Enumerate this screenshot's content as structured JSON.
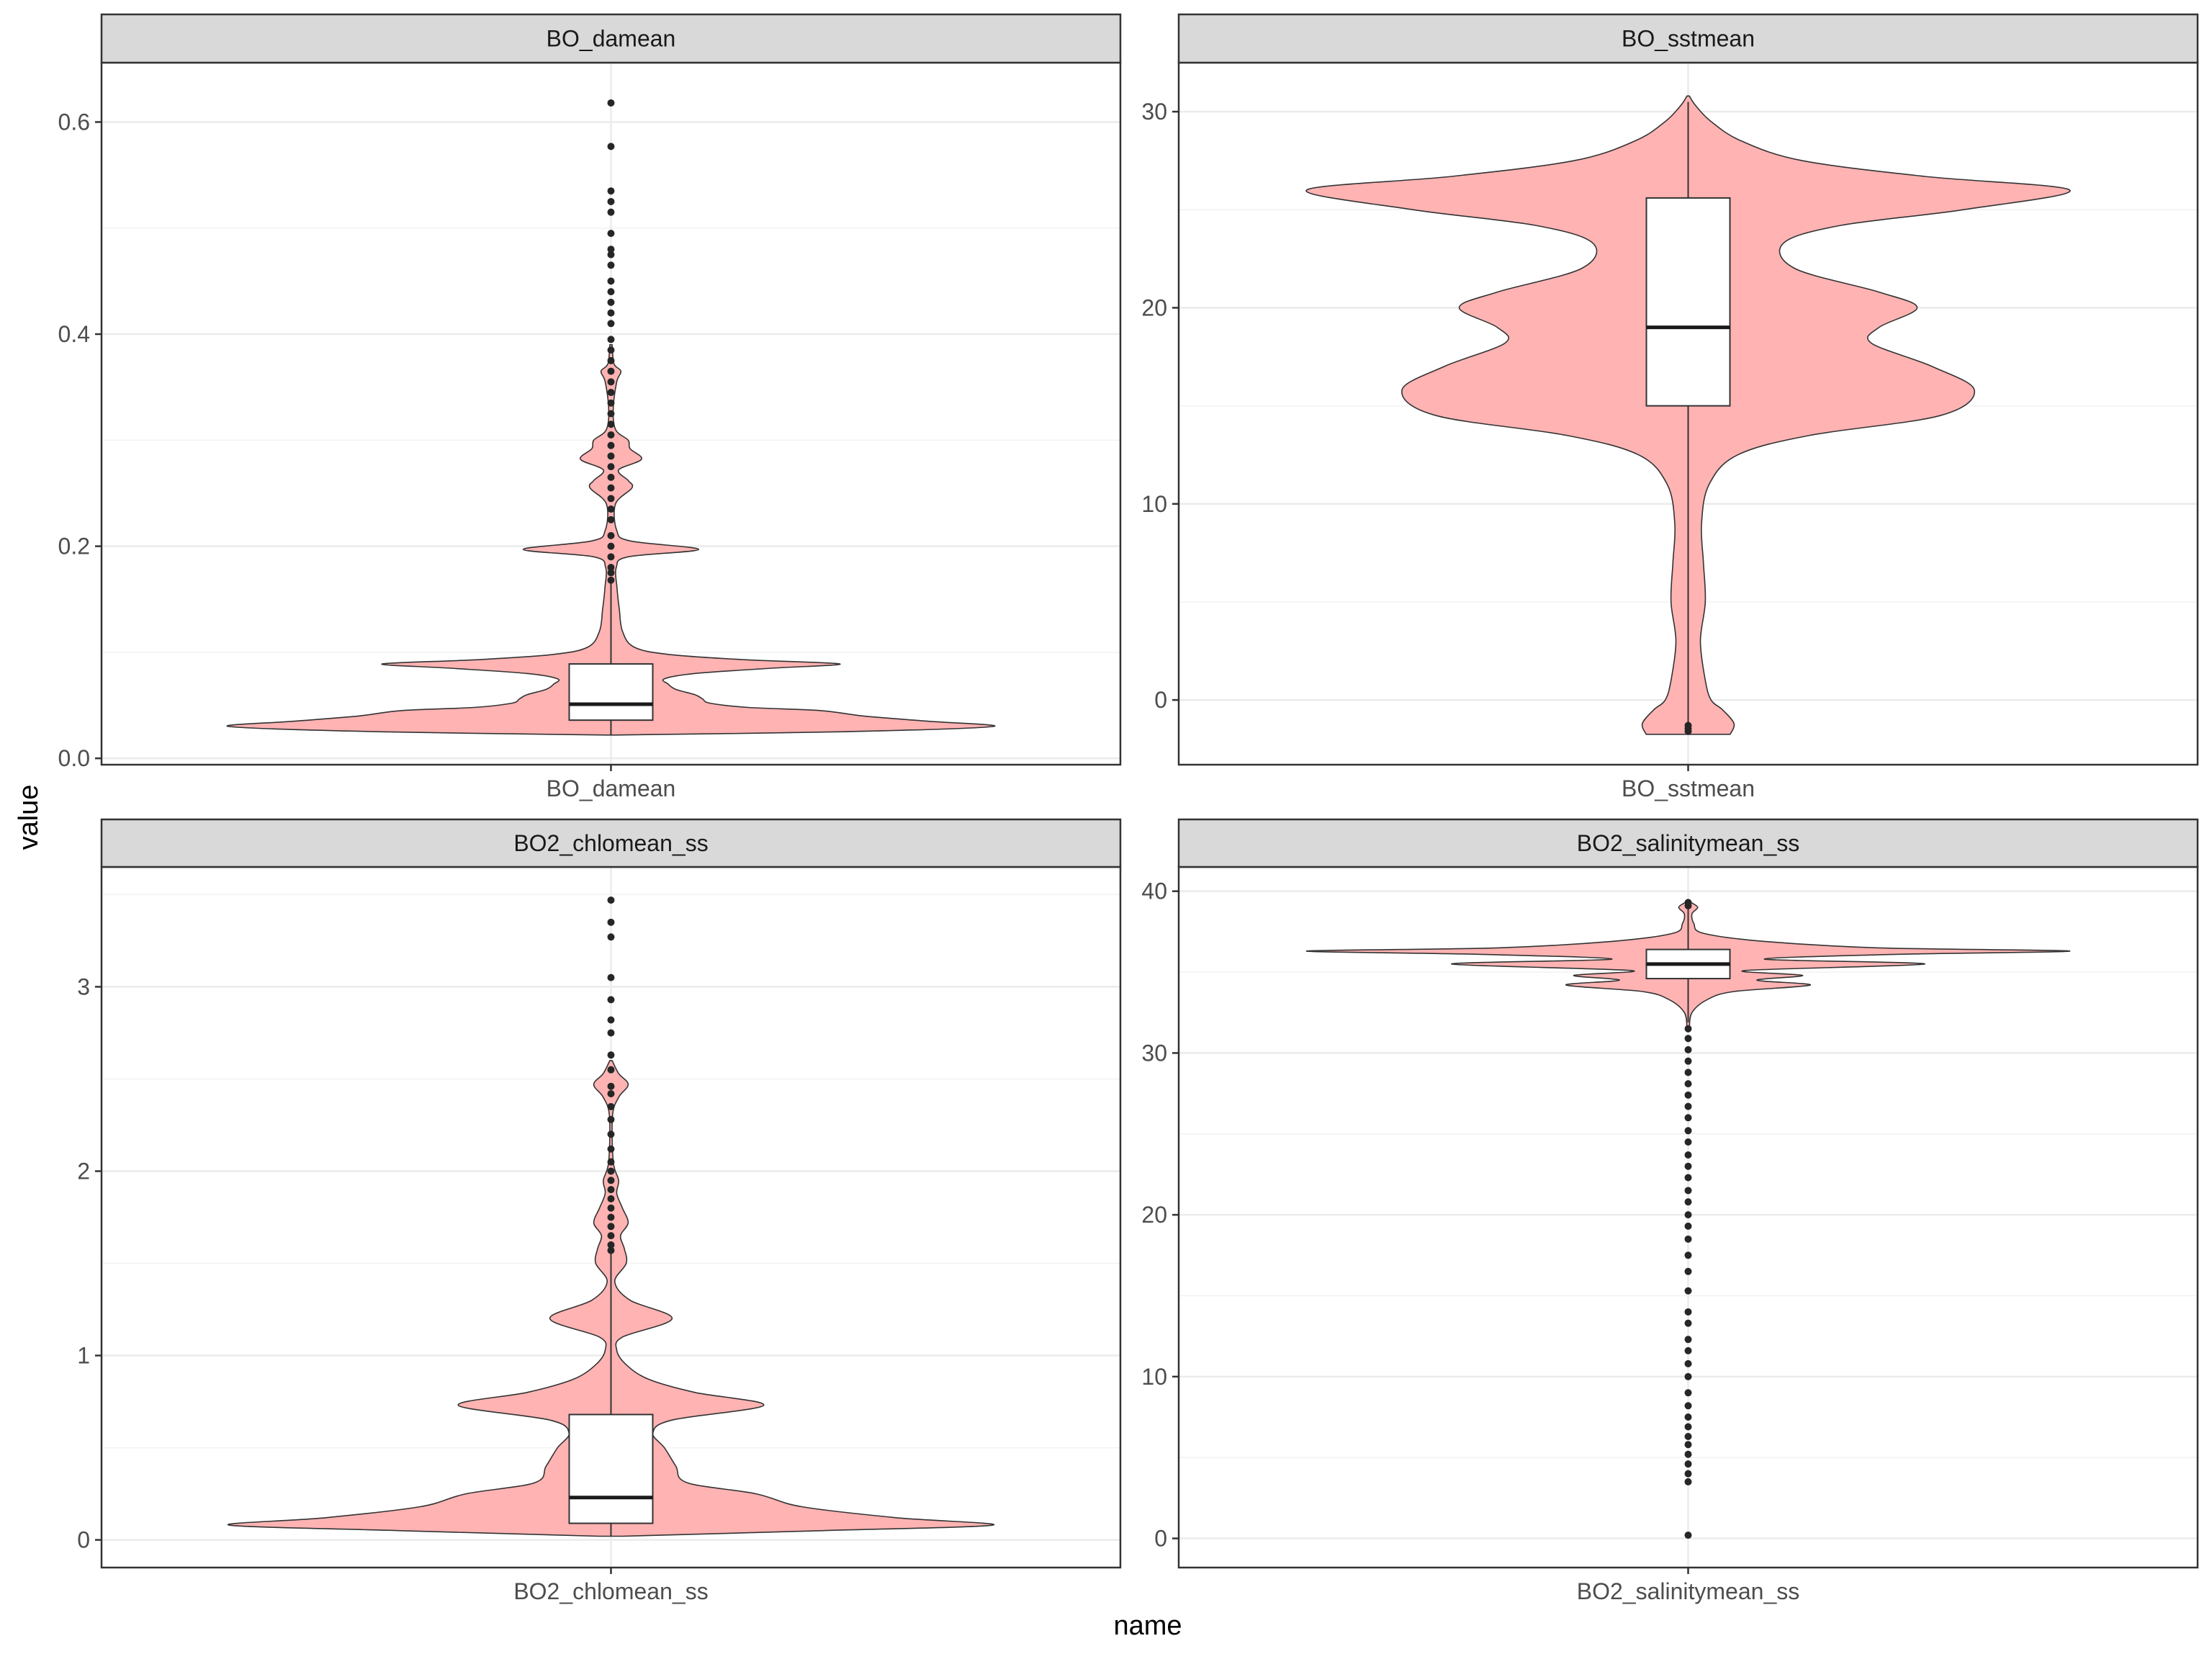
{
  "figure": {
    "xlabel": "name",
    "ylabel": "value"
  },
  "colors": {
    "violin_fill": "#ffb3b3",
    "violin_stroke": "#333333",
    "box_fill": "#ffffff",
    "median": "#1a1a1a",
    "outlier": "#262626",
    "strip_fill": "#d9d9d9",
    "panel_border": "#333333",
    "grid_major": "#ebebeb",
    "grid_minor": "#f2f2f2"
  },
  "chart_data": [
    {
      "type": "violin",
      "facet": "BO_damean",
      "category": "BO_damean",
      "ylim": [
        -0.006,
        0.656
      ],
      "yticks": [
        0.0,
        0.2,
        0.4,
        0.6
      ],
      "yticklabels": [
        "0.0",
        "0.2",
        "0.4",
        "0.6"
      ],
      "grid": true,
      "box": {
        "q1": 0.036,
        "median": 0.051,
        "q3": 0.089,
        "whisker_low": 0.022,
        "whisker_high": 0.168
      },
      "density_profile": [
        [
          0.022,
          0.01
        ],
        [
          0.025,
          0.6
        ],
        [
          0.03,
          1.0
        ],
        [
          0.035,
          0.83
        ],
        [
          0.04,
          0.66
        ],
        [
          0.045,
          0.55
        ],
        [
          0.048,
          0.36
        ],
        [
          0.052,
          0.26
        ],
        [
          0.056,
          0.24
        ],
        [
          0.06,
          0.22
        ],
        [
          0.065,
          0.17
        ],
        [
          0.07,
          0.15
        ],
        [
          0.075,
          0.14
        ],
        [
          0.08,
          0.22
        ],
        [
          0.085,
          0.42
        ],
        [
          0.089,
          0.6
        ],
        [
          0.093,
          0.35
        ],
        [
          0.098,
          0.15
        ],
        [
          0.105,
          0.06
        ],
        [
          0.12,
          0.03
        ],
        [
          0.14,
          0.022
        ],
        [
          0.16,
          0.016
        ],
        [
          0.18,
          0.014
        ],
        [
          0.19,
          0.045
        ],
        [
          0.197,
          0.23
        ],
        [
          0.205,
          0.05
        ],
        [
          0.215,
          0.015
        ],
        [
          0.24,
          0.012
        ],
        [
          0.255,
          0.055
        ],
        [
          0.262,
          0.045
        ],
        [
          0.272,
          0.02
        ],
        [
          0.282,
          0.08
        ],
        [
          0.292,
          0.05
        ],
        [
          0.3,
          0.045
        ],
        [
          0.31,
          0.012
        ],
        [
          0.33,
          0.006
        ],
        [
          0.355,
          0.015
        ],
        [
          0.365,
          0.026
        ],
        [
          0.372,
          0.008
        ],
        [
          0.39,
          0.003
        ]
      ],
      "outliers": [
        0.168,
        0.175,
        0.18,
        0.19,
        0.2,
        0.21,
        0.225,
        0.235,
        0.245,
        0.255,
        0.265,
        0.275,
        0.285,
        0.295,
        0.305,
        0.315,
        0.325,
        0.335,
        0.345,
        0.355,
        0.365,
        0.375,
        0.385,
        0.395,
        0.41,
        0.42,
        0.43,
        0.44,
        0.45,
        0.465,
        0.475,
        0.48,
        0.495,
        0.515,
        0.525,
        0.535,
        0.577,
        0.618
      ]
    },
    {
      "type": "violin",
      "facet": "BO_sstmean",
      "category": "BO_sstmean",
      "ylim": [
        -3.3,
        32.5
      ],
      "yticks": [
        0,
        10,
        20,
        30
      ],
      "yticklabels": [
        "0",
        "10",
        "20",
        "30"
      ],
      "grid": true,
      "box": {
        "q1": 15.0,
        "median": 19.0,
        "q3": 25.6,
        "whisker_low": -1.6,
        "whisker_high": 30.5
      },
      "density_profile": [
        [
          -1.75,
          0.11
        ],
        [
          -1.2,
          0.12
        ],
        [
          -0.5,
          0.09
        ],
        [
          0.0,
          0.06
        ],
        [
          1.0,
          0.045
        ],
        [
          3.0,
          0.032
        ],
        [
          5.0,
          0.045
        ],
        [
          7.0,
          0.04
        ],
        [
          9.0,
          0.035
        ],
        [
          11.0,
          0.055
        ],
        [
          12.5,
          0.13
        ],
        [
          13.5,
          0.32
        ],
        [
          14.5,
          0.66
        ],
        [
          15.8,
          0.75
        ],
        [
          17.0,
          0.64
        ],
        [
          18.2,
          0.48
        ],
        [
          19.0,
          0.5
        ],
        [
          20.0,
          0.6
        ],
        [
          20.8,
          0.5
        ],
        [
          22.0,
          0.28
        ],
        [
          23.3,
          0.25
        ],
        [
          24.2,
          0.4
        ],
        [
          25.0,
          0.72
        ],
        [
          26.0,
          1.0
        ],
        [
          26.7,
          0.62
        ],
        [
          27.5,
          0.3
        ],
        [
          28.5,
          0.14
        ],
        [
          29.5,
          0.06
        ],
        [
          30.3,
          0.02
        ],
        [
          30.8,
          0.003
        ]
      ],
      "outliers": [
        -1.6,
        -1.45,
        -1.3
      ]
    },
    {
      "type": "violin",
      "facet": "BO2_chlomean_ss",
      "category": "BO2_chlomean_ss",
      "ylim": [
        -0.15,
        3.65
      ],
      "yticks": [
        0,
        1,
        2,
        3
      ],
      "yticklabels": [
        "0",
        "1",
        "2",
        "3"
      ],
      "grid": true,
      "box": {
        "q1": 0.09,
        "median": 0.23,
        "q3": 0.68,
        "whisker_low": 0.02,
        "whisker_high": 1.57
      },
      "density_profile": [
        [
          0.02,
          0.03
        ],
        [
          0.05,
          0.55
        ],
        [
          0.08,
          1.0
        ],
        [
          0.12,
          0.75
        ],
        [
          0.18,
          0.5
        ],
        [
          0.25,
          0.38
        ],
        [
          0.31,
          0.2
        ],
        [
          0.4,
          0.17
        ],
        [
          0.5,
          0.14
        ],
        [
          0.58,
          0.11
        ],
        [
          0.65,
          0.16
        ],
        [
          0.73,
          0.4
        ],
        [
          0.8,
          0.22
        ],
        [
          0.87,
          0.1
        ],
        [
          0.95,
          0.04
        ],
        [
          1.03,
          0.015
        ],
        [
          1.1,
          0.03
        ],
        [
          1.2,
          0.16
        ],
        [
          1.3,
          0.05
        ],
        [
          1.4,
          0.01
        ],
        [
          1.5,
          0.04
        ],
        [
          1.58,
          0.035
        ],
        [
          1.65,
          0.025
        ],
        [
          1.72,
          0.045
        ],
        [
          1.8,
          0.03
        ],
        [
          1.88,
          0.015
        ],
        [
          1.95,
          0.02
        ],
        [
          2.05,
          0.006
        ],
        [
          2.3,
          0.004
        ],
        [
          2.4,
          0.02
        ],
        [
          2.47,
          0.045
        ],
        [
          2.53,
          0.02
        ],
        [
          2.6,
          0.003
        ]
      ],
      "outliers": [
        1.57,
        1.6,
        1.65,
        1.7,
        1.75,
        1.8,
        1.85,
        1.9,
        1.95,
        2.0,
        2.05,
        2.12,
        2.2,
        2.28,
        2.35,
        2.42,
        2.46,
        2.55,
        2.63,
        2.75,
        2.82,
        2.93,
        3.05,
        3.27,
        3.35,
        3.47
      ]
    },
    {
      "type": "violin",
      "facet": "BO2_salinitymean_ss",
      "category": "BO2_salinitymean_ss",
      "ylim": [
        -1.8,
        41.5
      ],
      "yticks": [
        0,
        10,
        20,
        30,
        40
      ],
      "yticklabels": [
        "0",
        "10",
        "20",
        "30",
        "40"
      ],
      "grid": true,
      "box": {
        "q1": 34.6,
        "median": 35.5,
        "q3": 36.4,
        "whisker_low": 31.9,
        "whisker_high": 39.2
      },
      "density_profile": [
        [
          31.5,
          0.003
        ],
        [
          32.5,
          0.01
        ],
        [
          33.3,
          0.05
        ],
        [
          33.8,
          0.12
        ],
        [
          34.2,
          0.32
        ],
        [
          34.5,
          0.18
        ],
        [
          34.8,
          0.3
        ],
        [
          35.1,
          0.15
        ],
        [
          35.5,
          0.62
        ],
        [
          35.8,
          0.2
        ],
        [
          36.1,
          0.55
        ],
        [
          36.3,
          1.0
        ],
        [
          36.5,
          0.5
        ],
        [
          36.9,
          0.2
        ],
        [
          37.4,
          0.04
        ],
        [
          38.0,
          0.015
        ],
        [
          38.6,
          0.01
        ],
        [
          39.0,
          0.025
        ],
        [
          39.3,
          0.008
        ]
      ],
      "outliers": [
        0.2,
        3.5,
        4.0,
        4.6,
        5.2,
        5.8,
        6.3,
        6.9,
        7.5,
        8.2,
        9.0,
        10.0,
        10.8,
        11.6,
        12.3,
        13.3,
        14.0,
        15.3,
        16.5,
        17.5,
        18.5,
        19.3,
        20.0,
        20.8,
        21.5,
        22.3,
        23.0,
        23.7,
        24.5,
        25.2,
        26.0,
        26.7,
        27.4,
        28.1,
        28.8,
        29.5,
        30.2,
        30.9,
        31.5,
        39.3,
        39.1
      ]
    }
  ]
}
